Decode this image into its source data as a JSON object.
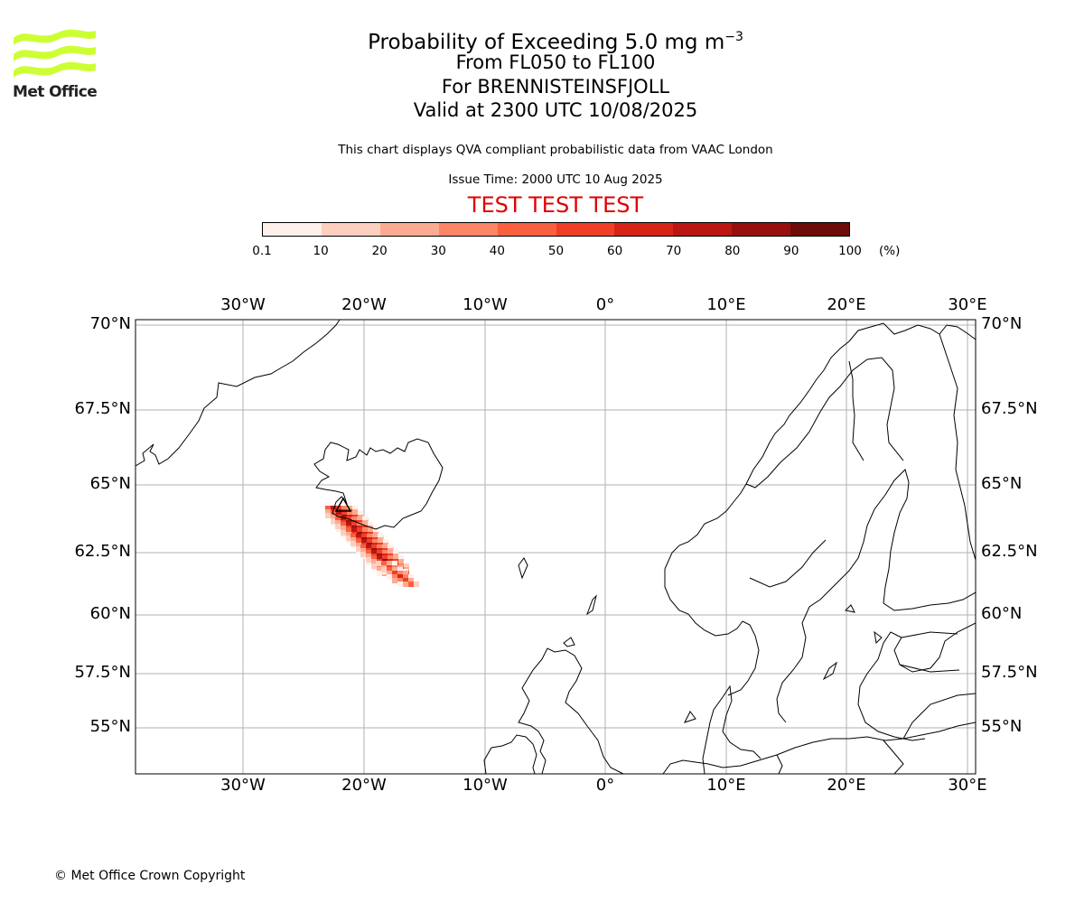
{
  "logo": {
    "text": "Met Office",
    "color": "#ccff33"
  },
  "header": {
    "title_prefix": "Probability of Exceeding 5.0 mg m",
    "title_exponent": "−3",
    "levels": "From FL050 to FL100",
    "volcano": "For BRENNISTEINSFJOLL",
    "valid_time": "Valid at 2300 UTC 10/08/2025",
    "disclaimer": "This chart displays QVA compliant probabilistic data from VAAC London",
    "issue_time": "Issue Time: 2000 UTC 10 Aug 2025",
    "test_banner": "TEST TEST TEST",
    "test_color": "#e00000"
  },
  "colorbar": {
    "ticks": [
      "0.1",
      "10",
      "20",
      "30",
      "40",
      "50",
      "60",
      "70",
      "80",
      "90",
      "100"
    ],
    "unit": "(%)",
    "colors": [
      "#fff0ea",
      "#fdcfbf",
      "#fcab92",
      "#fc8565",
      "#f9603f",
      "#f13f27",
      "#d72418",
      "#ba1612",
      "#97100e",
      "#6d0c09"
    ]
  },
  "map": {
    "projection": "plate-carree-like",
    "lon_range": [
      -39,
      30.7
    ],
    "lat_range": [
      53,
      70.2
    ],
    "lon_ticks": [
      "30°W",
      "20°W",
      "10°W",
      "0°",
      "10°E",
      "20°E",
      "30°E"
    ],
    "lat_ticks": [
      "70°N",
      "67.5°N",
      "65°N",
      "62.5°N",
      "60°N",
      "57.5°N",
      "55°N"
    ],
    "gridlines": true,
    "volcano_marker": "triangle",
    "plume": {
      "orientation": "NW to SE from southwest Iceland",
      "max_probability_percent": 100
    }
  },
  "footer": {
    "copyright": "© Met Office Crown Copyright"
  }
}
